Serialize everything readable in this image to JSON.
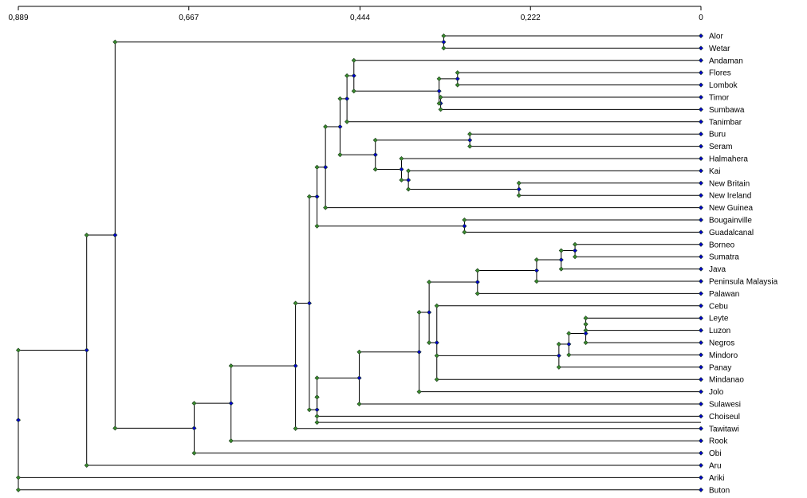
{
  "axis": {
    "ticks": [
      {
        "value": 0.889,
        "label": "0,889"
      },
      {
        "value": 0.667,
        "label": "0,667"
      },
      {
        "value": 0.444,
        "label": "0,444"
      },
      {
        "value": 0.222,
        "label": "0,222"
      },
      {
        "value": 0.0,
        "label": "0"
      }
    ],
    "range": [
      0.889,
      0.0
    ]
  },
  "colors": {
    "line": "#000000",
    "leaf_marker": "#0000cc",
    "node_center_marker": "#0000cc",
    "node_end_marker": "#3a8a2e",
    "background": "#ffffff"
  },
  "leaves": [
    "Alor",
    "Wetar",
    "Andaman",
    "Flores",
    "Lombok",
    "Timor",
    "Sumbawa",
    "Tanimbar",
    "Buru",
    "Seram",
    "Halmahera",
    "Kai",
    "New Britain",
    "New Ireland",
    "New Guinea",
    "Bougainville",
    "Guadalcanal",
    "Borneo",
    "Sumatra",
    "Java",
    "Peninsula Malaysia",
    "Palawan",
    "Cebu",
    "Leyte",
    "Luzon",
    "Negros",
    "Mindoro",
    "Panay",
    "Mindanao",
    "Jolo",
    "Sulawesi",
    "Choiseul",
    "Tawitawi",
    "Rook",
    "Obi",
    "Aru",
    "Ariki",
    "Buton"
  ],
  "tree": {
    "h": 0.889,
    "c": [
      {
        "h": 0.8,
        "c": [
          {
            "h": 0.763,
            "c": [
              {
                "h": 0.335,
                "c": [
                  {
                    "l": 0
                  },
                  {
                    "l": 1
                  }
                ]
              },
              {
                "h": 0.66,
                "c": [
                  {
                    "h": 0.612,
                    "c": [
                      {
                        "h": 0.528,
                        "c": [
                          {
                            "h": 0.51,
                            "c": [
                              {
                                "h": 0.5,
                                "c": [
                                  {
                                    "h": 0.489,
                                    "c": [
                                      {
                                        "h": 0.47,
                                        "c": [
                                          {
                                            "h": 0.461,
                                            "c": [
                                              {
                                                "h": 0.452,
                                                "c": [
                                                  {
                                                    "l": 2
                                                  },
                                                  {
                                                    "h": 0.341,
                                                    "c": [
                                                      {
                                                        "h": 0.317,
                                                        "c": [
                                                          {
                                                            "l": 3
                                                          },
                                                          {
                                                            "l": 4
                                                          }
                                                        ]
                                                      },
                                                      {
                                                        "h": 0.339,
                                                        "c": [
                                                          {
                                                            "l": 5
                                                          },
                                                          {
                                                            "l": 6
                                                          }
                                                        ]
                                                      }
                                                    ]
                                                  }
                                                ]
                                              },
                                              {
                                                "l": 7
                                              }
                                            ]
                                          },
                                          {
                                            "h": 0.424,
                                            "c": [
                                              {
                                                "h": 0.301,
                                                "c": [
                                                  {
                                                    "l": 8
                                                  },
                                                  {
                                                    "l": 9
                                                  }
                                                ]
                                              },
                                              {
                                                "h": 0.39,
                                                "c": [
                                                  {
                                                    "l": 10
                                                  },
                                                  {
                                                    "h": 0.381,
                                                    "c": [
                                                      {
                                                        "l": 11
                                                      },
                                                      {
                                                        "h": 0.237,
                                                        "c": [
                                                          {
                                                            "l": 12
                                                          },
                                                          {
                                                            "l": 13
                                                          }
                                                        ]
                                                      }
                                                    ]
                                                  }
                                                ]
                                              }
                                            ]
                                          }
                                        ]
                                      },
                                      {
                                        "l": 14
                                      }
                                    ]
                                  },
                                  {
                                    "h": 0.308,
                                    "c": [
                                      {
                                        "l": 15
                                      },
                                      {
                                        "l": 16
                                      }
                                    ]
                                  }
                                ]
                              },
                              {
                                "h": 0.5,
                                "c": [
                                  {
                                    "h": 0.5,
                                    "c": [
                                      {
                                        "h": 0.445,
                                        "c": [
                                          {
                                            "h": 0.367,
                                            "c": [
                                              {
                                                "h": 0.354,
                                                "c": [
                                                  {
                                                    "h": 0.291,
                                                    "c": [
                                                      {
                                                        "h": 0.214,
                                                        "c": [
                                                          {
                                                            "h": 0.182,
                                                            "c": [
                                                              {
                                                                "h": 0.164,
                                                                "c": [
                                                                  {
                                                                    "l": 17
                                                                  },
                                                                  {
                                                                    "l": 18
                                                                  }
                                                                ]
                                                              },
                                                              {
                                                                "l": 19
                                                              }
                                                            ]
                                                          },
                                                          {
                                                            "l": 20
                                                          }
                                                        ]
                                                      },
                                                      {
                                                        "l": 21
                                                      }
                                                    ]
                                                  },
                                                  {
                                                    "h": 0.344,
                                                    "c": [
                                                      {
                                                        "l": 22
                                                      },
                                                      {
                                                        "h": 0.185,
                                                        "c": [
                                                          {
                                                            "h": 0.172,
                                                            "c": [
                                                              {
                                                                "h": 0.15,
                                                                "c": [
                                                                  {
                                                                    "h": 0.15,
                                                                    "c": [
                                                                      {
                                                                        "l": 23
                                                                      },
                                                                      {
                                                                        "l": 24
                                                                      }
                                                                    ]
                                                                  },
                                                                  {
                                                                    "l": 25
                                                                  }
                                                                ]
                                                              },
                                                              {
                                                                "l": 26
                                                              }
                                                            ]
                                                          },
                                                          {
                                                            "l": 27
                                                          }
                                                        ]
                                                      },
                                                      {
                                                        "l": 28
                                                      }
                                                    ]
                                                  }
                                                ]
                                              },
                                              {
                                                "l": 29
                                              }
                                            ]
                                          },
                                          {
                                            "l": 30
                                          }
                                        ]
                                      },
                                      {
                                        "l": 31
                                      }
                                    ]
                                  },
                                  {
                                    "l": 31.5
                                  }
                                ]
                              }
                            ]
                          },
                          {
                            "l": 32
                          }
                        ]
                      },
                      {
                        "l": 33
                      }
                    ]
                  },
                  {
                    "l": 34
                  }
                ]
              }
            ]
          },
          {
            "l": 35
          }
        ]
      },
      {
        "l": 36
      },
      {
        "l": 37
      }
    ]
  }
}
